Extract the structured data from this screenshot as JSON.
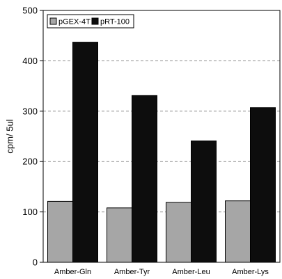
{
  "chart_data": {
    "type": "bar",
    "categories": [
      "Amber-Gln",
      "Amber-Tyr",
      "Amber-Leu",
      "Amber-Lys"
    ],
    "series": [
      {
        "name": "pGEX-4T",
        "color": "#a6a6a6",
        "values": [
          121,
          108,
          119,
          122
        ]
      },
      {
        "name": "pRT-100",
        "color": "#0d0d0d",
        "values": [
          437,
          331,
          241,
          307
        ]
      }
    ],
    "title": "",
    "xlabel": "",
    "ylabel": "cpm/ 5ul",
    "ylim": [
      0,
      500
    ],
    "yticks": [
      0,
      100,
      200,
      300,
      400,
      500
    ],
    "grid": "dashed horizontal",
    "legend_position": "top-left"
  }
}
